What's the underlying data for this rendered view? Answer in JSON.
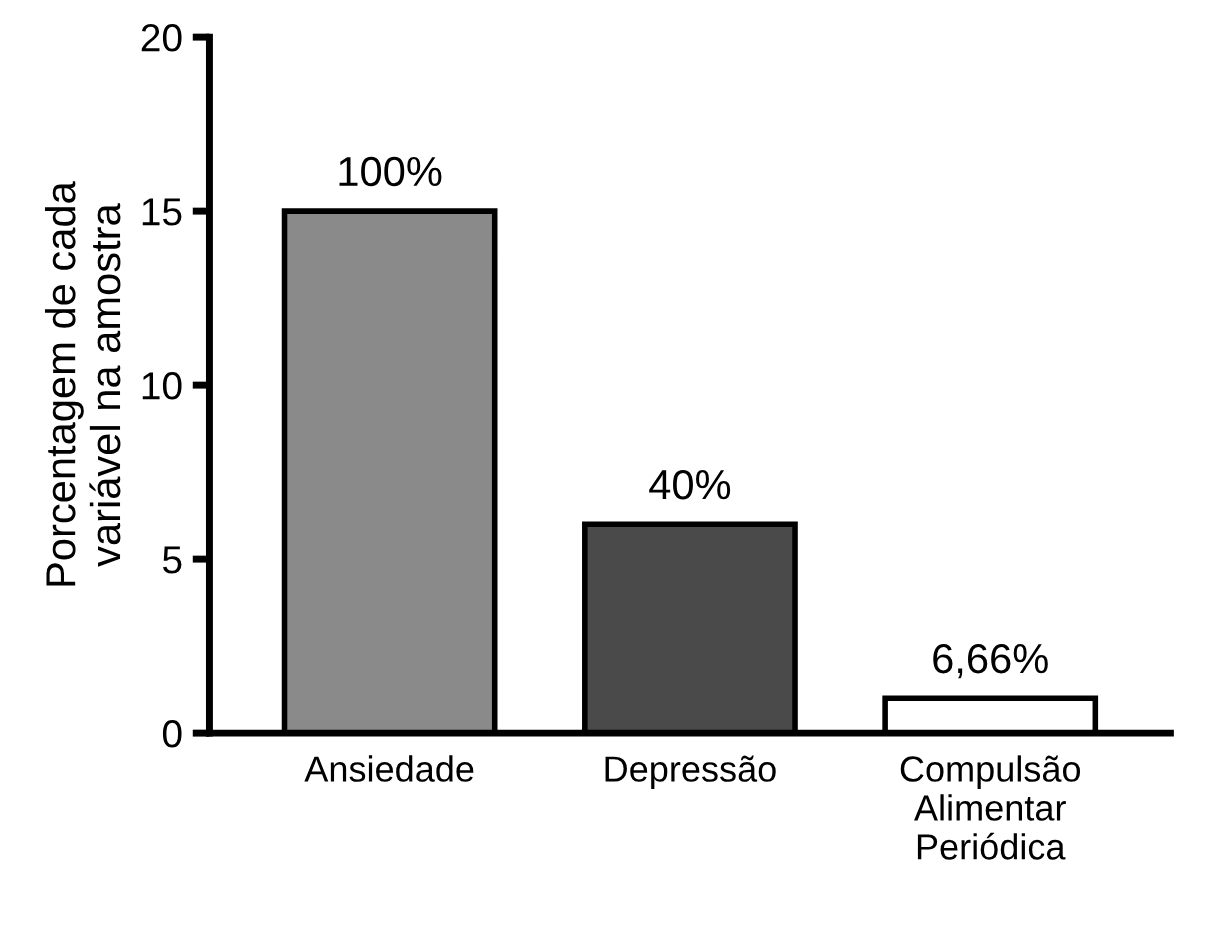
{
  "chart_data": {
    "type": "bar",
    "ylabel": "Porcentagem de cada\nvariável na amostra",
    "categories": [
      "Ansiedade",
      "Depressão",
      "Compulsão\nAlimentar\nPeriódica"
    ],
    "values": [
      15,
      6,
      1
    ],
    "colors": [
      "#8a8a8a",
      "#4a4a4a",
      "#ffffff"
    ],
    "annotations": [
      {
        "text": "100%",
        "x": "Ansiedade",
        "y": 15
      },
      {
        "text": "40%",
        "x": "Depressão",
        "y": 6
      },
      {
        "text": "6,66%",
        "x": "Compulsão\nAlimentar\nPeriódica",
        "y": 1
      }
    ],
    "ylim": [
      0,
      20
    ],
    "yticks": [
      0,
      5,
      10,
      15,
      20
    ],
    "grid": false,
    "legend": false
  }
}
